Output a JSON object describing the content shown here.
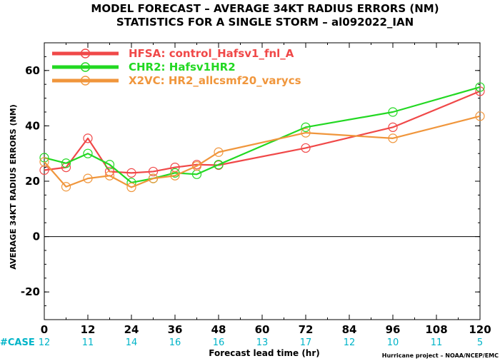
{
  "chart_data": {
    "type": "line",
    "title": "MODEL FORECAST – AVERAGE 34KT RADIUS ERRORS (NM)",
    "subtitle": "STATISTICS FOR A SINGLE STORM – al092022_IAN",
    "xlabel": "Forecast lead time (hr)",
    "ylabel": "AVERAGE 34KT RADIUS ERRORS (NM)",
    "xlim": [
      0,
      120
    ],
    "ylim": [
      -30,
      70
    ],
    "x_ticks": [
      "0",
      "12",
      "24",
      "36",
      "48",
      "60",
      "72",
      "84",
      "96",
      "108",
      "120"
    ],
    "y_ticks": [
      "-20",
      "0",
      "20",
      "40",
      "60"
    ],
    "zero_line": true,
    "grid": false,
    "legend_position": "top-left",
    "series": [
      {
        "name": "HFSA: control_Hafsv1_fnl_A",
        "color": "#f04848",
        "x": [
          0,
          6,
          12,
          18,
          24,
          30,
          36,
          42,
          48,
          72,
          96,
          120
        ],
        "y": [
          24,
          25,
          35.5,
          23.5,
          23,
          23.5,
          25,
          26,
          25.8,
          32,
          39.5,
          52.5
        ]
      },
      {
        "name": "CHR2: Hafsv1HR2",
        "color": "#22d822",
        "x": [
          0,
          6,
          12,
          18,
          24,
          30,
          36,
          42,
          48,
          72,
          96,
          120
        ],
        "y": [
          28.5,
          26.5,
          30,
          26,
          19.5,
          21,
          23,
          22.5,
          26,
          39.5,
          45,
          54
        ]
      },
      {
        "name": "X2VC: HR2_allcsmf20_varycs",
        "color": "#f0963c",
        "x": [
          0,
          6,
          12,
          18,
          24,
          30,
          36,
          42,
          48,
          72,
          96,
          120
        ],
        "y": [
          27,
          18,
          21,
          22,
          17.8,
          21,
          22,
          25.5,
          30.5,
          37.5,
          35.5,
          43.5
        ]
      }
    ],
    "case_counts": {
      "label": "#CASE",
      "x": [
        0,
        12,
        24,
        36,
        48,
        60,
        72,
        84,
        96,
        108,
        120
      ],
      "counts": [
        "12",
        "11",
        "14",
        "16",
        "16",
        "13",
        "17",
        "12",
        "10",
        "11",
        "5"
      ]
    },
    "credit": "Hurricane project – NOAA/NCEP/EMC"
  }
}
